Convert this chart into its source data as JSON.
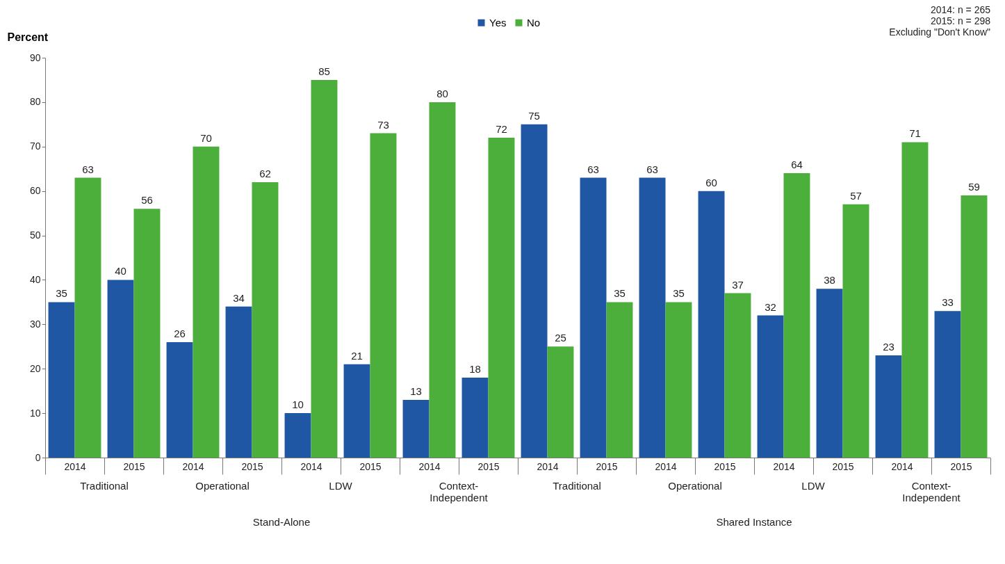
{
  "chart_data": {
    "type": "bar",
    "ylabel": "Percent",
    "categories": [
      "2014",
      "2015",
      "2014",
      "2015",
      "2014",
      "2015",
      "2014",
      "2015",
      "2014",
      "2015",
      "2014",
      "2015",
      "2014",
      "2015",
      "2014",
      "2015"
    ],
    "series": [
      {
        "name": "Yes",
        "color": "#1f57a4",
        "values": [
          35,
          40,
          26,
          34,
          10,
          21,
          13,
          18,
          75,
          63,
          63,
          60,
          32,
          38,
          23,
          33
        ]
      },
      {
        "name": "No",
        "color": "#4caf3c",
        "values": [
          63,
          56,
          70,
          62,
          85,
          73,
          80,
          72,
          25,
          35,
          35,
          37,
          64,
          57,
          71,
          59
        ]
      }
    ],
    "ylim": [
      0,
      90
    ],
    "yticks": [
      0,
      10,
      20,
      30,
      40,
      50,
      60,
      70,
      80,
      90
    ],
    "grid": false,
    "legend": "top",
    "data_labels": true,
    "annotations": [
      "2014: n = 265",
      "2015: n = 298",
      "Excluding \"Don't Know\"",
      "Traditional",
      "Operational",
      "LDW",
      "Context-\nIndependent",
      "Traditional",
      "Operational",
      "LDW",
      "Context-\nIndependent",
      "Stand-Alone",
      "Shared Instance"
    ]
  }
}
